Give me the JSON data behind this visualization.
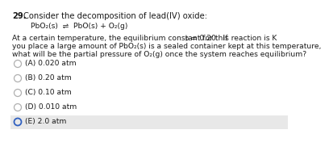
{
  "question_number": "29.",
  "title_text": "Consider the decomposition of lead(IV) oxide:",
  "equation": "PbO₂(s)  ⇌  PbO(s) + O₂(g)",
  "body_line1a": "At a certain temperature, the equilibrium constant for this reaction is K",
  "body_Kp": "p",
  "body_line1b": " = 0.20.  If",
  "body_line2": "you place a large amount of PbO₂(s) is a sealed container kept at this temperature,",
  "body_line3": "what will be the partial pressure of O₂(g) once the system reaches equilibrium?",
  "choices": [
    "(A) 0.020 atm",
    "(B) 0.20 atm",
    "(C) 0.10 atm",
    "(D) 0.010 atm",
    "(E) 2.0 atm"
  ],
  "highlighted_choice": 4,
  "highlight_color": "#e8e8e8",
  "circle_color_default": "#b0b0b0",
  "circle_color_highlight": "#3060c0",
  "bg_color": "#ffffff",
  "text_color": "#1a1a1a",
  "font_size_header": 7.2,
  "font_size_body": 6.6,
  "font_size_choices": 6.6
}
